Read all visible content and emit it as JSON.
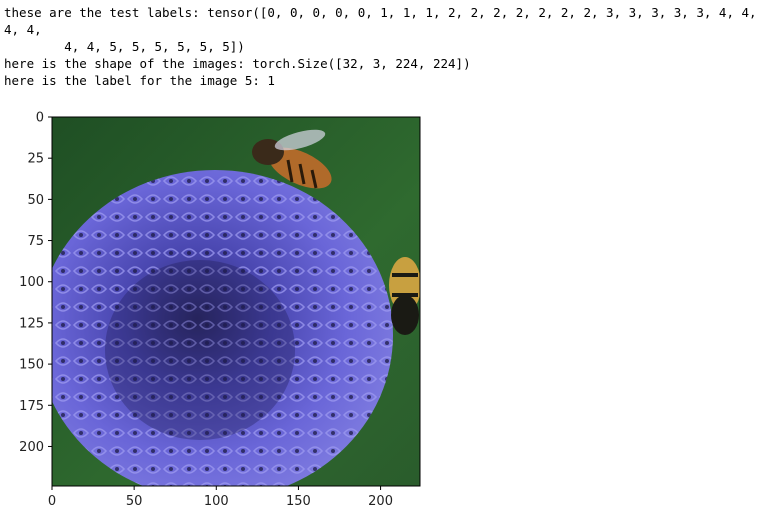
{
  "cell_output": {
    "lines": [
      "these are the test labels: tensor([0, 0, 0, 0, 0, 1, 1, 1, 2, 2, 2, 2, 2, 2, 2, 3, 3, 3, 3, 3, 4, 4,",
      "4, 4,",
      "        4, 4, 5, 5, 5, 5, 5, 5])",
      "here is the shape of the images: torch.Size([32, 3, 224, 224])",
      "here is the label for the image 5: 1"
    ]
  },
  "chart_data": {
    "type": "image",
    "xlim": [
      0,
      224
    ],
    "ylim": [
      0,
      224
    ],
    "y_inverted": true,
    "xticks": [
      0,
      50,
      100,
      150,
      200
    ],
    "yticks": [
      0,
      25,
      50,
      75,
      100,
      125,
      150,
      175,
      200
    ],
    "image_subject": "purple globe thistle flower head with bees",
    "colors": {
      "flower": "#5a55c8",
      "background": "#2f6a2f",
      "bee": "#8a5a2a"
    }
  }
}
